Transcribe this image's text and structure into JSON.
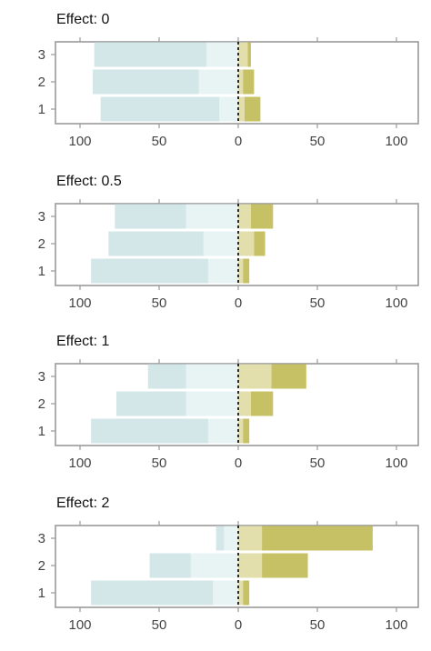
{
  "colors": {
    "neg_inner": "#e8f3f3",
    "neg_outer": "#d3e6e8",
    "pos_inner": "#e3dfad",
    "pos_outer": "#c7c165",
    "frame": "#9a9a9a",
    "zero_line": "#000000"
  },
  "chart_data": [
    {
      "type": "bar",
      "title": "Effect: 0",
      "categories": [
        "3",
        "2",
        "1"
      ],
      "x_tick_labels": [
        "100",
        "50",
        "0",
        "50",
        "100"
      ],
      "xlim": [
        -100,
        100
      ],
      "grid": false,
      "series": [
        {
          "values": [
            -20,
            -25,
            -12
          ]
        },
        {
          "values": [
            -71,
            -67,
            -75
          ]
        },
        {
          "values": [
            6,
            3,
            4
          ]
        },
        {
          "values": [
            2,
            7,
            10
          ]
        }
      ]
    },
    {
      "type": "bar",
      "title": "Effect: 0.5",
      "categories": [
        "3",
        "2",
        "1"
      ],
      "x_tick_labels": [
        "100",
        "50",
        "0",
        "50",
        "100"
      ],
      "xlim": [
        -100,
        100
      ],
      "grid": false,
      "series": [
        {
          "values": [
            -33,
            -22,
            -19
          ]
        },
        {
          "values": [
            -45,
            -60,
            -74
          ]
        },
        {
          "values": [
            8,
            10,
            3
          ]
        },
        {
          "values": [
            14,
            7,
            4
          ]
        }
      ]
    },
    {
      "type": "bar",
      "title": "Effect: 1",
      "categories": [
        "3",
        "2",
        "1"
      ],
      "x_tick_labels": [
        "100",
        "50",
        "0",
        "50",
        "100"
      ],
      "xlim": [
        -100,
        100
      ],
      "grid": false,
      "series": [
        {
          "values": [
            -33,
            -33,
            -19
          ]
        },
        {
          "values": [
            -24,
            -44,
            -74
          ]
        },
        {
          "values": [
            21,
            8,
            3
          ]
        },
        {
          "values": [
            22,
            14,
            4
          ]
        }
      ]
    },
    {
      "type": "bar",
      "title": "Effect: 2",
      "categories": [
        "3",
        "2",
        "1"
      ],
      "x_tick_labels": [
        "100",
        "50",
        "0",
        "50",
        "100"
      ],
      "xlim": [
        -100,
        100
      ],
      "grid": false,
      "series": [
        {
          "values": [
            -9,
            -30,
            -16
          ]
        },
        {
          "values": [
            -5,
            -26,
            -77
          ]
        },
        {
          "values": [
            15,
            15,
            3
          ]
        },
        {
          "values": [
            70,
            29,
            4
          ]
        }
      ]
    }
  ]
}
